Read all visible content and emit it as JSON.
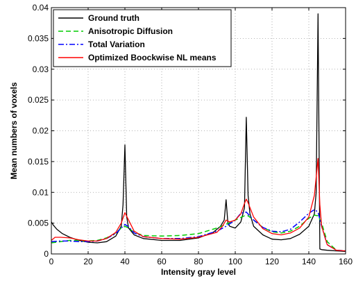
{
  "chart_data": {
    "type": "line",
    "title": "",
    "xlabel": "Intensity gray level",
    "ylabel": "Mean numbers of voxels",
    "xlim": [
      0,
      160
    ],
    "ylim": [
      0,
      0.04
    ],
    "xticks": [
      0,
      20,
      40,
      60,
      80,
      100,
      120,
      140,
      160
    ],
    "yticks": [
      0,
      0.005,
      0.01,
      0.015,
      0.02,
      0.025,
      0.03,
      0.035,
      0.04
    ],
    "xtick_labels": [
      "0",
      "20",
      "40",
      "60",
      "80",
      "100",
      "120",
      "140",
      "160"
    ],
    "ytick_labels": [
      "0",
      "0.005",
      "0.01",
      "0.015",
      "0.02",
      "0.025",
      "0.03",
      "0.035",
      "0.04"
    ],
    "grid": true,
    "legend_position": "top-left",
    "series": [
      {
        "name": "Ground truth",
        "color": "#000000",
        "style": "solid",
        "x": [
          0,
          1,
          3,
          6,
          10,
          15,
          20,
          25,
          30,
          35,
          38,
          39,
          40,
          41,
          42,
          45,
          50,
          60,
          70,
          80,
          88,
          92,
          94,
          95,
          96,
          97,
          100,
          103,
          105,
          106,
          107,
          108,
          110,
          115,
          120,
          125,
          130,
          135,
          140,
          143,
          144,
          145,
          146,
          147,
          150,
          155,
          160
        ],
        "y": [
          0.0052,
          0.0047,
          0.004,
          0.0033,
          0.0027,
          0.0022,
          0.0019,
          0.0018,
          0.002,
          0.0029,
          0.0045,
          0.008,
          0.0177,
          0.006,
          0.0042,
          0.0031,
          0.0025,
          0.0022,
          0.0022,
          0.0026,
          0.0035,
          0.0045,
          0.0055,
          0.0088,
          0.005,
          0.0045,
          0.0042,
          0.0052,
          0.0075,
          0.0222,
          0.0095,
          0.0065,
          0.0045,
          0.0031,
          0.0024,
          0.0023,
          0.0025,
          0.0032,
          0.0045,
          0.0065,
          0.01,
          0.039,
          0.0008,
          0.0007,
          0.0006,
          0.0005,
          0.0004
        ]
      },
      {
        "name": "Anisotropic Diffusion",
        "color": "#00cc00",
        "style": "dashed",
        "x": [
          0,
          5,
          10,
          15,
          20,
          25,
          30,
          35,
          38,
          40,
          42,
          45,
          50,
          60,
          70,
          80,
          90,
          95,
          100,
          105,
          107,
          110,
          115,
          120,
          125,
          130,
          135,
          140,
          143,
          145,
          147,
          150,
          155,
          160
        ],
        "y": [
          0.0018,
          0.002,
          0.0022,
          0.0022,
          0.0021,
          0.0022,
          0.0026,
          0.0034,
          0.0042,
          0.0045,
          0.0042,
          0.0035,
          0.003,
          0.0029,
          0.003,
          0.0033,
          0.0042,
          0.0048,
          0.0055,
          0.0062,
          0.0062,
          0.0055,
          0.0043,
          0.0036,
          0.0034,
          0.0037,
          0.0045,
          0.0058,
          0.0063,
          0.0062,
          0.005,
          0.002,
          0.0006,
          0.0005
        ]
      },
      {
        "name": "Total Variation",
        "color": "#0000ff",
        "style": "dashdot",
        "x": [
          0,
          5,
          10,
          15,
          20,
          25,
          30,
          35,
          38,
          40,
          42,
          45,
          50,
          60,
          70,
          80,
          90,
          95,
          100,
          103,
          106,
          110,
          115,
          120,
          125,
          130,
          135,
          140,
          143,
          145,
          147,
          150,
          155,
          160
        ],
        "y": [
          0.002,
          0.0021,
          0.0021,
          0.002,
          0.002,
          0.0021,
          0.0025,
          0.0033,
          0.0042,
          0.0048,
          0.0044,
          0.0034,
          0.0028,
          0.0025,
          0.0025,
          0.0028,
          0.0037,
          0.0045,
          0.0055,
          0.0066,
          0.0068,
          0.0055,
          0.0043,
          0.0037,
          0.0036,
          0.004,
          0.0052,
          0.0066,
          0.0072,
          0.0068,
          0.0045,
          0.0015,
          0.0006,
          0.0005
        ]
      },
      {
        "name": "Optimized Boockwise NL means",
        "color": "#ff0000",
        "style": "solid",
        "x": [
          0,
          2,
          5,
          10,
          15,
          20,
          25,
          30,
          35,
          38,
          40,
          42,
          45,
          50,
          60,
          70,
          80,
          90,
          93,
          95,
          97,
          100,
          103,
          105,
          106,
          107,
          110,
          115,
          120,
          125,
          130,
          135,
          140,
          143,
          145,
          146,
          147,
          150,
          155,
          160
        ],
        "y": [
          0.0022,
          0.0027,
          0.0027,
          0.0026,
          0.0023,
          0.0021,
          0.0021,
          0.0025,
          0.0035,
          0.005,
          0.0067,
          0.0055,
          0.0037,
          0.0028,
          0.0025,
          0.0024,
          0.0027,
          0.0035,
          0.0045,
          0.0055,
          0.0052,
          0.0055,
          0.0065,
          0.0082,
          0.0089,
          0.0083,
          0.006,
          0.0041,
          0.0033,
          0.0031,
          0.0034,
          0.0042,
          0.006,
          0.0095,
          0.0155,
          0.008,
          0.0045,
          0.0015,
          0.0006,
          0.0005
        ]
      }
    ]
  }
}
